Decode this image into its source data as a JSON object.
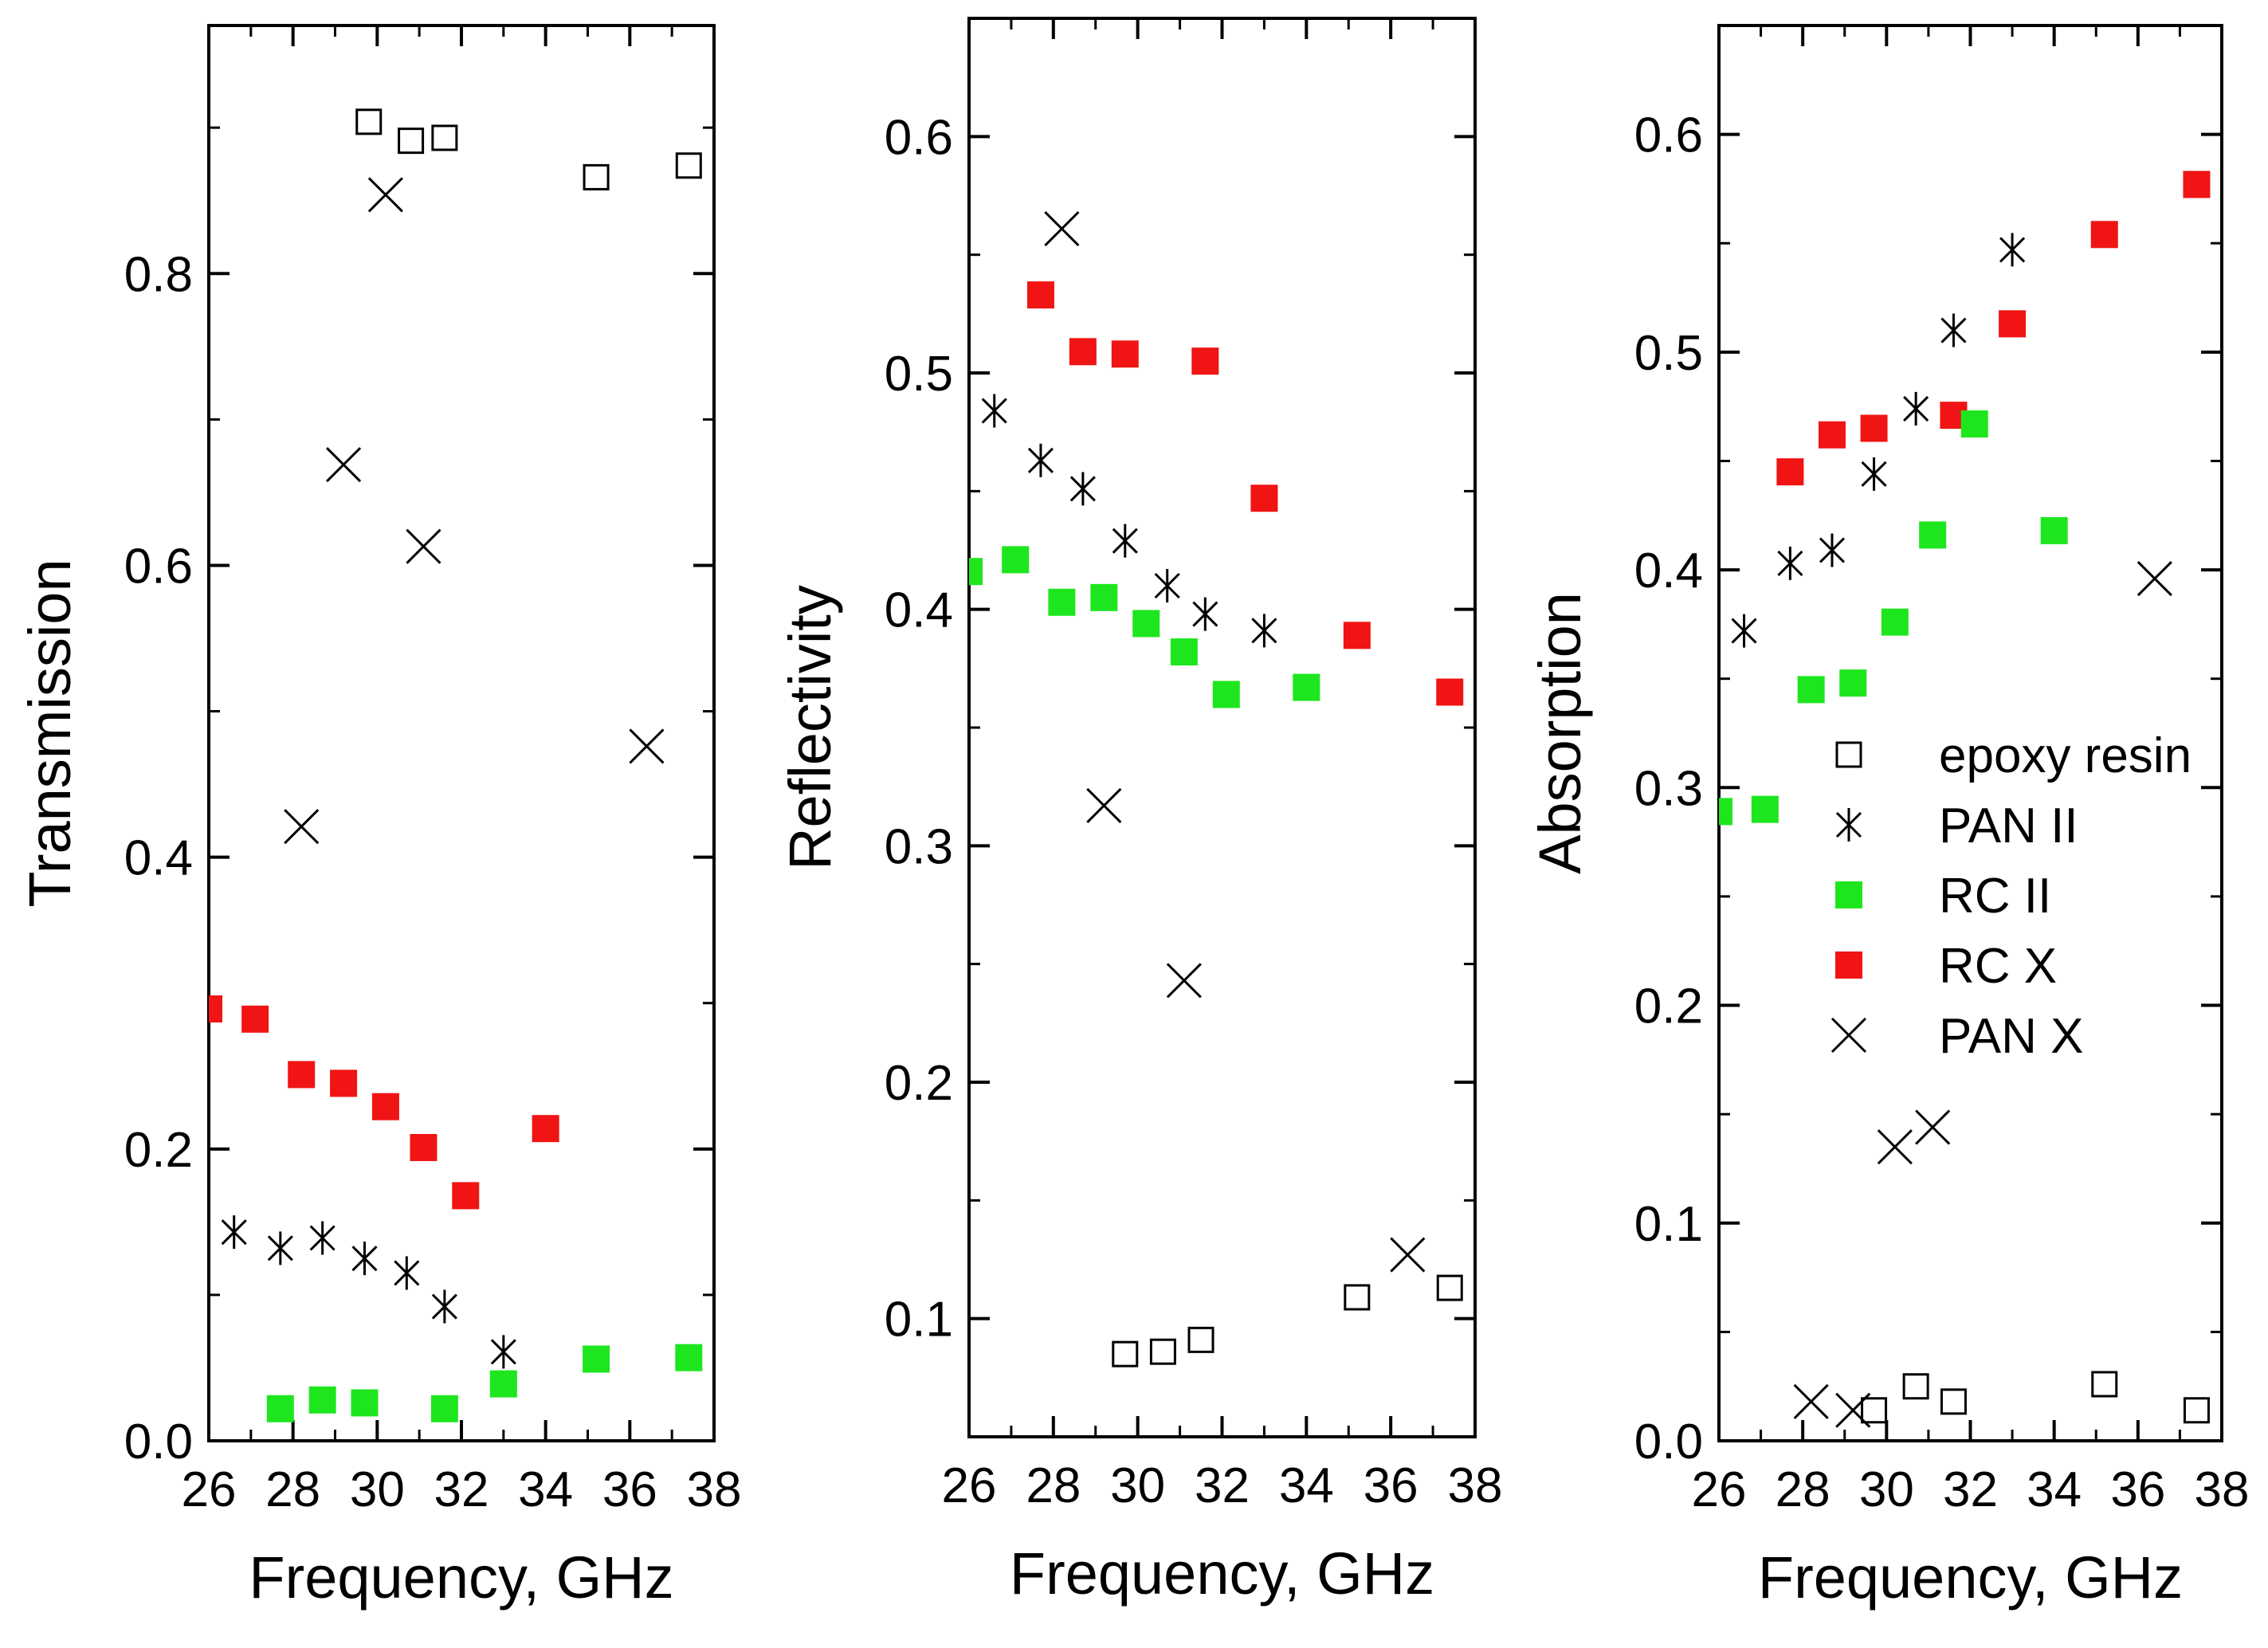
{
  "colors": {
    "rc_ii": "#1ee61e",
    "rc_x": "#f01414",
    "axis": "#000000"
  },
  "legend": [
    {
      "label": "epoxy resin",
      "marker": "open-square"
    },
    {
      "label": "PAN II",
      "marker": "asterisk"
    },
    {
      "label": "RC II",
      "marker": "green-square"
    },
    {
      "label": "RC X",
      "marker": "red-square"
    },
    {
      "label": "PAN X",
      "marker": "x-cross"
    }
  ],
  "chart_data": [
    {
      "type": "scatter",
      "title": "",
      "xlabel": "Frequency, GHz",
      "ylabel": "Transmission",
      "xlim": [
        26,
        38
      ],
      "ylim": [
        0,
        0.97
      ],
      "xticks": [
        26,
        28,
        30,
        32,
        34,
        36,
        38
      ],
      "xtick_labels": [
        "26",
        "28",
        "30",
        "32",
        "34",
        "36",
        "38"
      ],
      "yticks": [
        0.0,
        0.2,
        0.4,
        0.6,
        0.8
      ],
      "ytick_labels": [
        "0.0",
        "0.2",
        "0.4",
        "0.6",
        "0.8"
      ],
      "series": [
        {
          "name": "epoxy resin",
          "marker": "open-square",
          "x": [
            29.8,
            30.8,
            31.6,
            35.2,
            37.4
          ],
          "y": [
            0.904,
            0.891,
            0.893,
            0.866,
            0.874
          ]
        },
        {
          "name": "PAN X",
          "marker": "x-cross",
          "x": [
            28.2,
            29.2,
            30.2,
            31.1,
            36.4
          ],
          "y": [
            0.421,
            0.669,
            0.854,
            0.613,
            0.476
          ]
        },
        {
          "name": "RC X",
          "marker": "red-square",
          "x": [
            26.0,
            27.1,
            28.2,
            29.2,
            30.2,
            31.1,
            32.1,
            34.0
          ],
          "y": [
            0.296,
            0.289,
            0.251,
            0.245,
            0.229,
            0.201,
            0.168,
            0.214
          ]
        },
        {
          "name": "PAN II",
          "marker": "asterisk",
          "x": [
            26.6,
            27.7,
            28.7,
            29.7,
            30.7,
            31.6,
            33.0
          ],
          "y": [
            0.143,
            0.132,
            0.139,
            0.125,
            0.115,
            0.092,
            0.061
          ]
        },
        {
          "name": "RC II",
          "marker": "green-square",
          "x": [
            27.7,
            28.7,
            29.7,
            31.6,
            33.0,
            35.2,
            37.4
          ],
          "y": [
            0.022,
            0.028,
            0.026,
            0.022,
            0.039,
            0.056,
            0.057
          ]
        }
      ]
    },
    {
      "type": "scatter",
      "title": "",
      "xlabel": "Frequency, GHz",
      "ylabel": "Reflectivity",
      "xlim": [
        26,
        38
      ],
      "ylim": [
        0.05,
        0.65
      ],
      "xticks": [
        26,
        28,
        30,
        32,
        34,
        36,
        38
      ],
      "xtick_labels": [
        "26",
        "28",
        "30",
        "32",
        "34",
        "36",
        "38"
      ],
      "yticks": [
        0.1,
        0.2,
        0.3,
        0.4,
        0.5,
        0.6
      ],
      "ytick_labels": [
        "0.1",
        "0.2",
        "0.3",
        "0.4",
        "0.5",
        "0.6"
      ],
      "series": [
        {
          "name": "epoxy resin",
          "marker": "open-square",
          "x": [
            29.7,
            30.6,
            31.5,
            35.2,
            37.4
          ],
          "y": [
            0.085,
            0.086,
            0.091,
            0.109,
            0.113
          ]
        },
        {
          "name": "PAN X",
          "marker": "x-cross",
          "x": [
            28.2,
            29.2,
            31.1,
            36.4
          ],
          "y": [
            0.561,
            0.317,
            0.243,
            0.127
          ]
        },
        {
          "name": "RC X",
          "marker": "red-square",
          "x": [
            27.7,
            28.7,
            29.7,
            31.6,
            33.0,
            35.2,
            37.4
          ],
          "y": [
            0.533,
            0.509,
            0.508,
            0.505,
            0.447,
            0.389,
            0.365
          ]
        },
        {
          "name": "PAN II",
          "marker": "asterisk",
          "x": [
            26.6,
            27.7,
            28.7,
            29.7,
            30.7,
            31.6,
            33.0
          ],
          "y": [
            0.484,
            0.463,
            0.451,
            0.429,
            0.41,
            0.398,
            0.391
          ]
        },
        {
          "name": "RC II",
          "marker": "green-square",
          "x": [
            26.0,
            27.1,
            28.2,
            29.2,
            30.2,
            31.1,
            32.1,
            34.0
          ],
          "y": [
            0.416,
            0.421,
            0.403,
            0.405,
            0.394,
            0.382,
            0.364,
            0.367
          ]
        }
      ]
    },
    {
      "type": "scatter",
      "title": "",
      "xlabel": "Frequency, GHz",
      "ylabel": "Absorption",
      "xlim": [
        26,
        38
      ],
      "ylim": [
        0,
        0.65
      ],
      "xticks": [
        26,
        28,
        30,
        32,
        34,
        36,
        38
      ],
      "xtick_labels": [
        "26",
        "28",
        "30",
        "32",
        "34",
        "36",
        "38"
      ],
      "yticks": [
        0.0,
        0.1,
        0.2,
        0.3,
        0.4,
        0.5,
        0.6
      ],
      "ytick_labels": [
        "0.0",
        "0.1",
        "0.2",
        "0.3",
        "0.4",
        "0.5",
        "0.6"
      ],
      "series": [
        {
          "name": "epoxy resin",
          "marker": "open-square",
          "x": [
            29.7,
            30.7,
            31.6,
            35.2,
            37.4
          ],
          "y": [
            0.014,
            0.025,
            0.018,
            0.026,
            0.014
          ]
        },
        {
          "name": "PAN X",
          "marker": "x-cross",
          "x": [
            28.2,
            29.2,
            30.2,
            31.1,
            36.4
          ],
          "y": [
            0.018,
            0.014,
            0.135,
            0.144,
            0.396
          ]
        },
        {
          "name": "RC X",
          "marker": "red-square",
          "x": [
            27.7,
            28.7,
            29.7,
            31.6,
            33.0,
            35.2,
            37.4
          ],
          "y": [
            0.445,
            0.462,
            0.465,
            0.471,
            0.513,
            0.554,
            0.577
          ]
        },
        {
          "name": "PAN II",
          "marker": "asterisk",
          "x": [
            26.6,
            27.7,
            28.7,
            29.7,
            30.7,
            31.6,
            33.0
          ],
          "y": [
            0.372,
            0.403,
            0.409,
            0.444,
            0.474,
            0.51,
            0.547
          ]
        },
        {
          "name": "RC II",
          "marker": "green-square",
          "x": [
            26.0,
            27.1,
            28.2,
            29.2,
            30.2,
            31.1,
            32.1,
            34.0
          ],
          "y": [
            0.289,
            0.29,
            0.345,
            0.348,
            0.376,
            0.416,
            0.467,
            0.418
          ]
        }
      ]
    }
  ]
}
